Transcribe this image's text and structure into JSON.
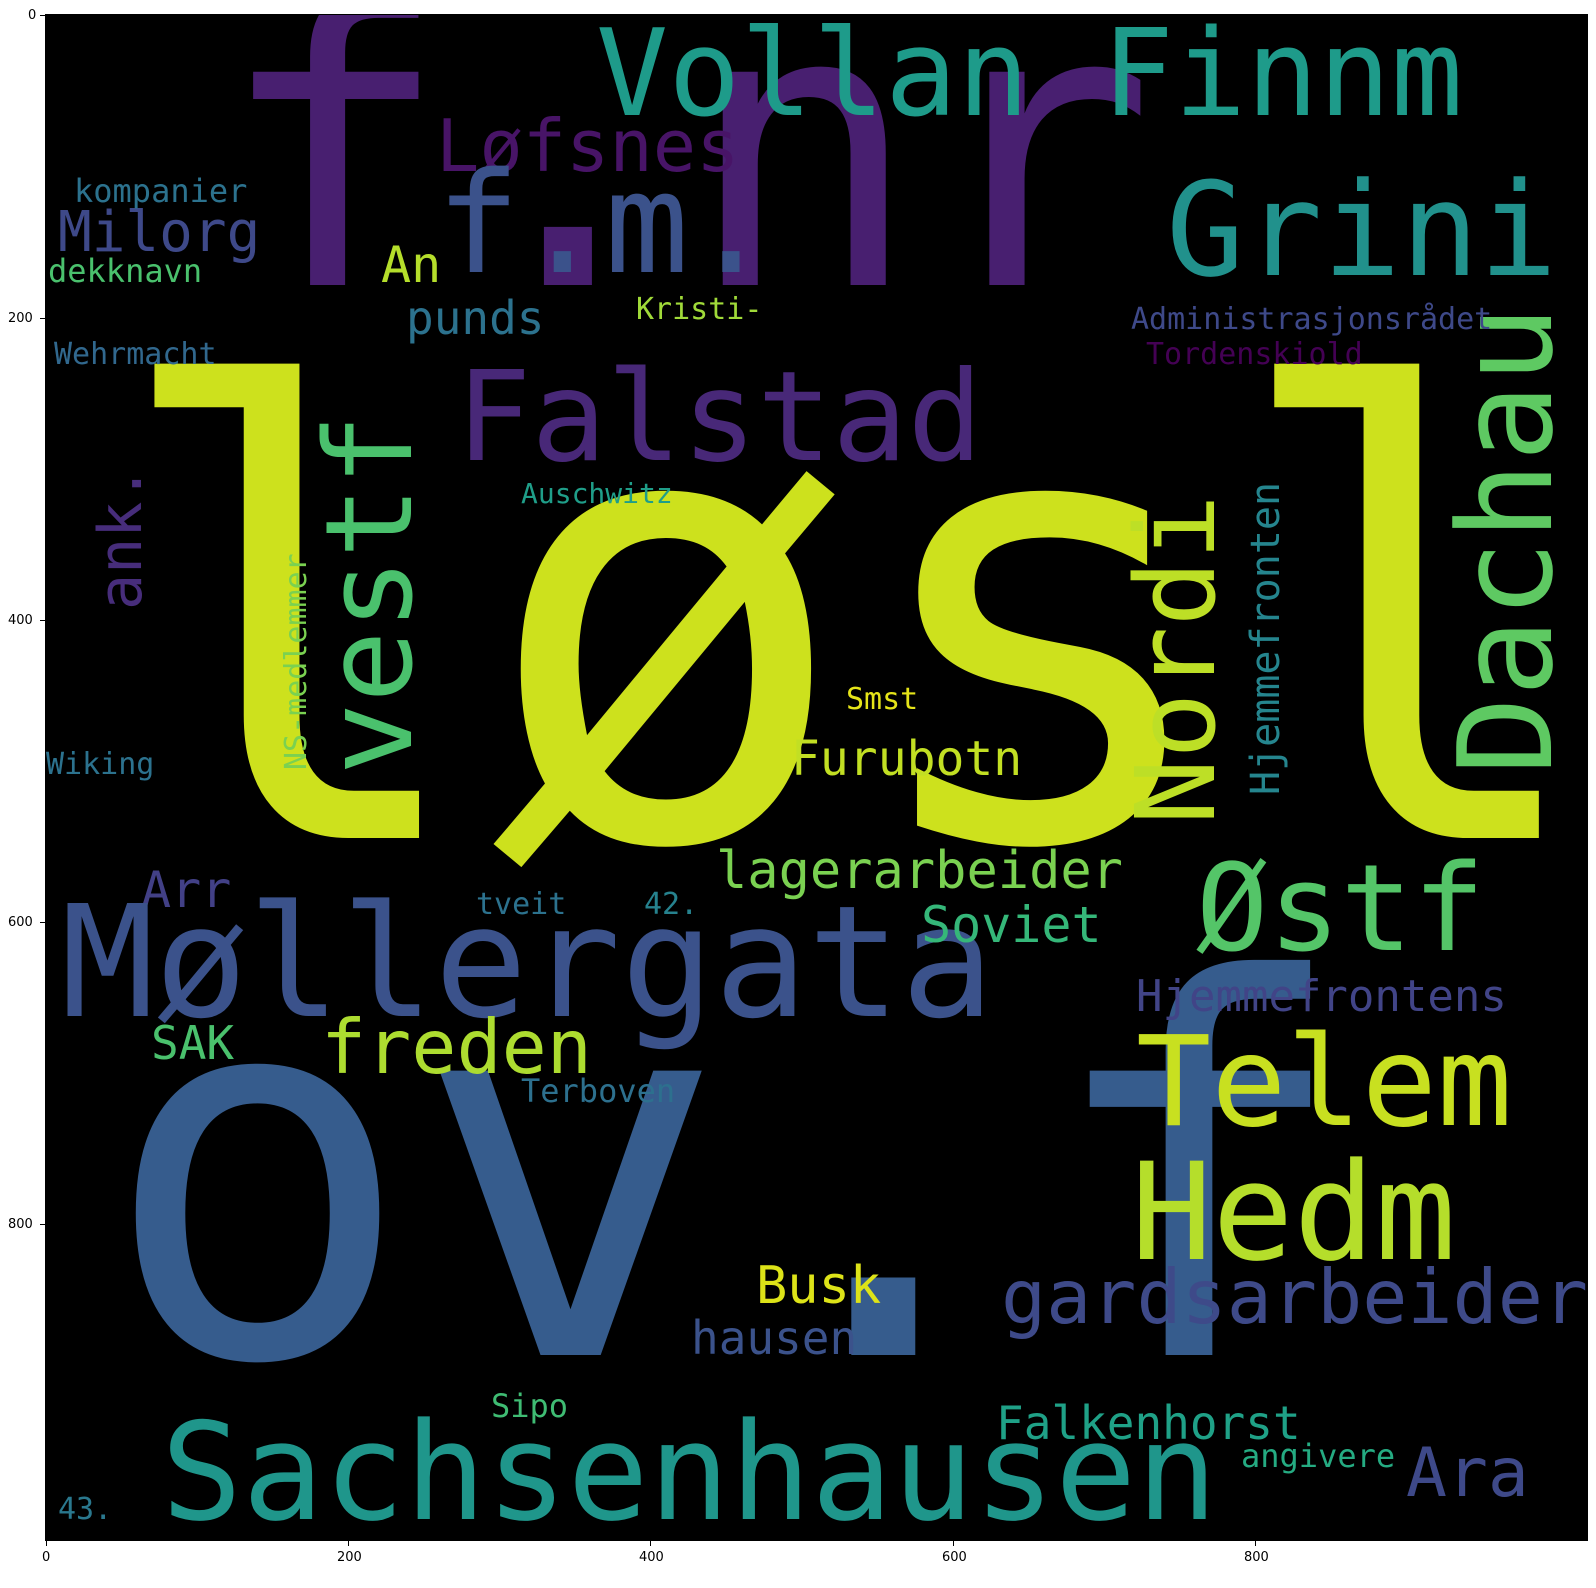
{
  "axes": {
    "x_ticks": [
      "0",
      "200",
      "400",
      "600",
      "800"
    ],
    "y_ticks": [
      "0",
      "200",
      "400",
      "600",
      "800"
    ]
  },
  "wordcloud": {
    "background": "#000000",
    "colormap": "viridis",
    "words": [
      {
        "text": "løsl",
        "color": "#cde11d"
      },
      {
        "text": "ov.f",
        "color": "#365c8d"
      },
      {
        "text": "f.nr",
        "color": "#481f70"
      },
      {
        "text": "Vollan Finnm",
        "color": "#1e9b8a"
      },
      {
        "text": "Løfsnes",
        "color": "#481467"
      },
      {
        "text": "f.m.",
        "color": "#3b528b"
      },
      {
        "text": "Grini",
        "color": "#21918c"
      },
      {
        "text": "Dachau",
        "color": "#5ec962"
      },
      {
        "text": "Falstad",
        "color": "#482878"
      },
      {
        "text": "vestf",
        "color": "#4ac16d"
      },
      {
        "text": "Nordi",
        "color": "#bddf26"
      },
      {
        "text": "Milorg",
        "color": "#3e4989"
      },
      {
        "text": "kompanier",
        "color": "#2c728e"
      },
      {
        "text": "dekknavn",
        "color": "#4ac16d"
      },
      {
        "text": "An",
        "color": "#b5de2b"
      },
      {
        "text": "punds",
        "color": "#2c728e"
      },
      {
        "text": "Kristi-",
        "color": "#a0da39"
      },
      {
        "text": "Administrasjonsrådet",
        "color": "#3e4989"
      },
      {
        "text": "Tordenskiold",
        "color": "#440154"
      },
      {
        "text": "Wehrmacht",
        "color": "#31688e"
      },
      {
        "text": "ank.",
        "color": "#472d7b"
      },
      {
        "text": "Auschwitz",
        "color": "#1f9e89"
      },
      {
        "text": "Hjemmefronten",
        "color": "#25858e"
      },
      {
        "text": "NS-medlemmer",
        "color": "#7ad151"
      },
      {
        "text": "Smst",
        "color": "#e5e419"
      },
      {
        "text": "Wiking",
        "color": "#2c728e"
      },
      {
        "text": "Furubotn",
        "color": "#c2df23"
      },
      {
        "text": "lagerarbeider",
        "color": "#7ad151"
      },
      {
        "text": "Arr",
        "color": "#424086"
      },
      {
        "text": "Møllergata",
        "color": "#3b528b"
      },
      {
        "text": "tveit",
        "color": "#2c728e"
      },
      {
        "text": "42.",
        "color": "#26828e"
      },
      {
        "text": "Soviet",
        "color": "#35b779"
      },
      {
        "text": "Østf",
        "color": "#54c568"
      },
      {
        "text": "Hjemmefrontens",
        "color": "#414487"
      },
      {
        "text": "SAK",
        "color": "#4ac16d"
      },
      {
        "text": "freden",
        "color": "#addc30"
      },
      {
        "text": "Telem",
        "color": "#c8e020"
      },
      {
        "text": "Terboven",
        "color": "#2d708e"
      },
      {
        "text": "Hedm",
        "color": "#b5de2b"
      },
      {
        "text": "gardsarbeider",
        "color": "#3e4a89"
      },
      {
        "text": "Busk",
        "color": "#dde318"
      },
      {
        "text": "hausen",
        "color": "#3b528b"
      },
      {
        "text": "Sipo",
        "color": "#3fbc73"
      },
      {
        "text": "Falkenhorst",
        "color": "#1fa187"
      },
      {
        "text": "Sachsenhausen",
        "color": "#1f968b"
      },
      {
        "text": "Ara",
        "color": "#3e4989"
      },
      {
        "text": "angivere",
        "color": "#25ab82"
      },
      {
        "text": "43.",
        "color": "#2a788e"
      }
    ]
  }
}
